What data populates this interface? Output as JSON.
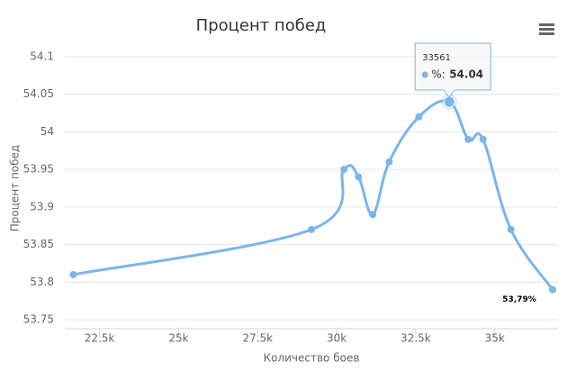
{
  "chart_data": {
    "type": "line",
    "title": "Процент побед",
    "xlabel": "Количество боев",
    "ylabel": "Процент побед",
    "x": [
      21670,
      29200,
      30230,
      30690,
      31140,
      31660,
      32600,
      33561,
      34160,
      34630,
      35510,
      36830
    ],
    "series": [
      {
        "name": "%",
        "color": "#7cb5ec",
        "values": [
          53.81,
          53.87,
          53.95,
          53.94,
          53.89,
          53.96,
          54.02,
          54.04,
          53.99,
          53.99,
          53.87,
          53.79
        ],
        "value_labels": [
          null,
          null,
          null,
          null,
          null,
          null,
          null,
          null,
          null,
          null,
          null,
          "53,79%"
        ]
      }
    ],
    "xlim": [
      21400,
      37000
    ],
    "ylim": [
      53.75,
      54.1
    ],
    "xticks": [
      {
        "value": 22500,
        "label": "22.5k"
      },
      {
        "value": 25000,
        "label": "25k"
      },
      {
        "value": 27500,
        "label": "27.5k"
      },
      {
        "value": 30000,
        "label": "30k"
      },
      {
        "value": 32500,
        "label": "32.5k"
      },
      {
        "value": 35000,
        "label": "35k"
      }
    ],
    "yticks": [
      53.75,
      53.8,
      53.85,
      53.9,
      53.95,
      54,
      54.05,
      54.1
    ],
    "grid": true,
    "tooltip": {
      "label": "%:"
    }
  }
}
